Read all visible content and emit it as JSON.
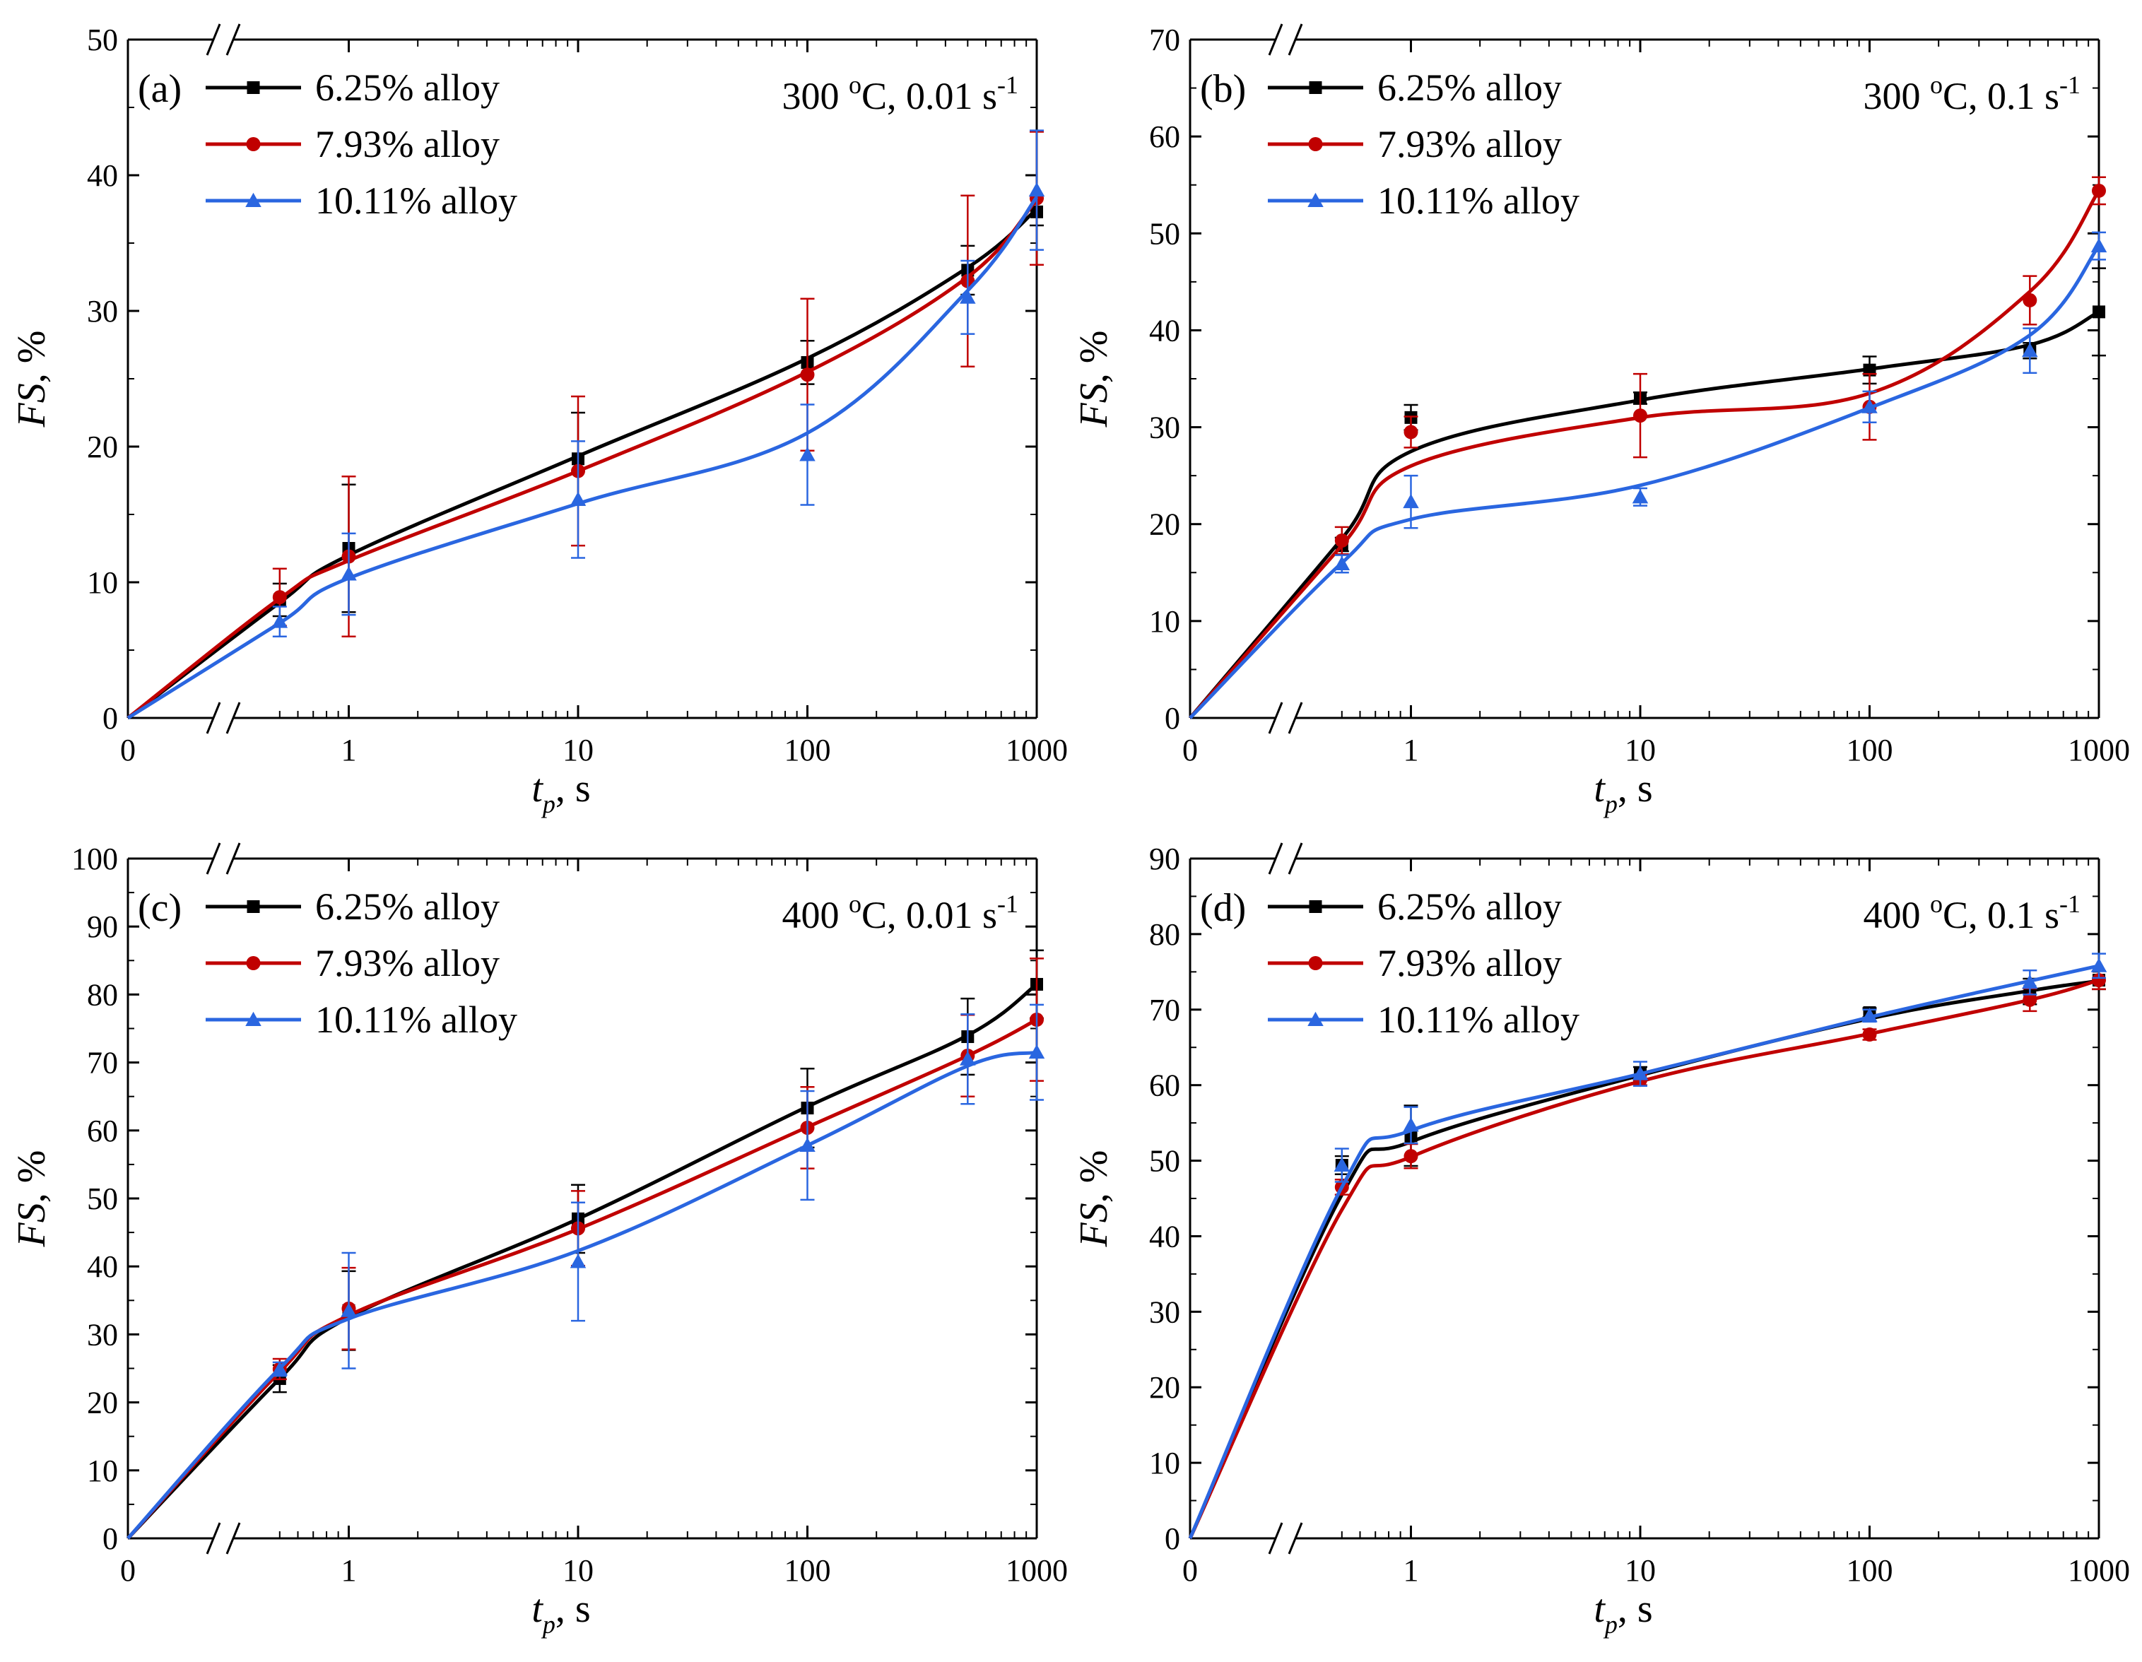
{
  "legend": {
    "s625": "6.25% alloy",
    "s793": "7.93% alloy",
    "s1011": "10.11% alloy"
  },
  "series_colors": {
    "s625": "#000000",
    "s793": "#c00000",
    "s1011": "#2a66e0"
  },
  "series_markers": {
    "s625": "square",
    "s793": "circle",
    "s1011": "triangle"
  },
  "chart_data": [
    {
      "type": "line",
      "panel": "(a)",
      "condition": "300 °C, 0.01 s-1",
      "condition_parts": {
        "pre": "300 ",
        "deg": "o",
        "mid": "C, 0.01 s",
        "exp": "-1"
      },
      "xlabel": "tp, s",
      "ylabel": "FS, %",
      "x_scale": "log with axis break between 0 and 0.5",
      "x_ticks": [
        "0",
        "1",
        "10",
        "100",
        "1000"
      ],
      "y_ticks": [
        "0",
        "10",
        "20",
        "30",
        "40",
        "50"
      ],
      "ylim": [
        0,
        50
      ],
      "x": [
        0.5,
        1,
        10,
        100,
        500,
        1000
      ],
      "series": [
        {
          "name": "6.25% alloy",
          "key": "s625",
          "values": [
            8.7,
            12.5,
            19.1,
            26.2,
            33.0,
            37.3
          ],
          "errors": [
            1.2,
            4.7,
            3.4,
            1.6,
            1.8,
            1.0
          ],
          "curve": [
            [
              0,
              0
            ],
            [
              0.5,
              8.5
            ],
            [
              1,
              12.0
            ],
            [
              10,
              19.3
            ],
            [
              100,
              26.5
            ],
            [
              500,
              33.2
            ],
            [
              1000,
              37.5
            ]
          ]
        },
        {
          "name": "7.93% alloy",
          "key": "s793",
          "values": [
            8.9,
            11.9,
            18.2,
            25.3,
            32.2,
            38.3
          ],
          "errors": [
            2.1,
            5.9,
            5.5,
            5.6,
            6.3,
            4.9
          ],
          "curve": [
            [
              0,
              0
            ],
            [
              0.5,
              8.8
            ],
            [
              1,
              11.6
            ],
            [
              10,
              18.2
            ],
            [
              100,
              25.5
            ],
            [
              500,
              32.5
            ],
            [
              1000,
              38.2
            ]
          ]
        },
        {
          "name": "10.11% alloy",
          "key": "s1011",
          "values": [
            7.1,
            10.6,
            16.1,
            19.4,
            31.0,
            38.9
          ],
          "errors": [
            1.1,
            3.0,
            4.3,
            3.7,
            2.7,
            4.4
          ],
          "curve": [
            [
              0,
              0
            ],
            [
              0.5,
              7.0
            ],
            [
              1,
              10.3
            ],
            [
              10,
              15.8
            ],
            [
              100,
              21.0
            ],
            [
              500,
              31.5
            ],
            [
              1000,
              38.4
            ]
          ]
        }
      ]
    },
    {
      "type": "line",
      "panel": "(b)",
      "condition": "300 °C, 0.1 s-1",
      "condition_parts": {
        "pre": "300 ",
        "deg": "o",
        "mid": "C, 0.1 s",
        "exp": "-1"
      },
      "xlabel": "tp, s",
      "ylabel": "FS, %",
      "x_scale": "log with axis break between 0 and 0.5",
      "x_ticks": [
        "0",
        "1",
        "10",
        "100",
        "1000"
      ],
      "y_ticks": [
        "0",
        "10",
        "20",
        "30",
        "40",
        "50",
        "60",
        "70"
      ],
      "ylim": [
        0,
        70
      ],
      "x": [
        0.5,
        1,
        10,
        100,
        500,
        1000
      ],
      "series": [
        {
          "name": "6.25% alloy",
          "key": "s625",
          "values": [
            17.9,
            31.0,
            33.0,
            35.9,
            37.9,
            41.9
          ],
          "errors": [
            0.7,
            1.3,
            0.6,
            1.4,
            0.8,
            4.5
          ],
          "curve": [
            [
              0,
              0
            ],
            [
              0.5,
              18.5
            ],
            [
              1,
              27.5
            ],
            [
              10,
              32.8
            ],
            [
              100,
              36.0
            ],
            [
              500,
              38.5
            ],
            [
              1000,
              41.9
            ]
          ]
        },
        {
          "name": "7.93% alloy",
          "key": "s793",
          "values": [
            18.3,
            29.5,
            31.2,
            32.1,
            43.1,
            54.4
          ],
          "errors": [
            1.4,
            1.6,
            4.3,
            3.4,
            2.5,
            1.4
          ],
          "curve": [
            [
              0,
              0
            ],
            [
              0.5,
              17.8
            ],
            [
              1,
              26.0
            ],
            [
              10,
              31.0
            ],
            [
              100,
              33.5
            ],
            [
              500,
              44.0
            ],
            [
              1000,
              54.4
            ]
          ]
        },
        {
          "name": "10.11% alloy",
          "key": "s1011",
          "values": [
            15.9,
            22.3,
            22.8,
            32.1,
            37.9,
            48.7
          ],
          "errors": [
            0.9,
            2.7,
            0.9,
            1.6,
            2.3,
            1.4
          ],
          "curve": [
            [
              0,
              0
            ],
            [
              0.5,
              16.0
            ],
            [
              1,
              20.5
            ],
            [
              10,
              24.0
            ],
            [
              100,
              32.0
            ],
            [
              500,
              39.5
            ],
            [
              1000,
              48.7
            ]
          ]
        }
      ]
    },
    {
      "type": "line",
      "panel": "(c)",
      "condition": "400 °C, 0.01 s-1",
      "condition_parts": {
        "pre": "400 ",
        "deg": "o",
        "mid": "C, 0.01 s",
        "exp": "-1"
      },
      "xlabel": "tp, s",
      "ylabel": "FS, %",
      "x_scale": "log with axis break between 0 and 0.5",
      "x_ticks": [
        "0",
        "1",
        "10",
        "100",
        "1000"
      ],
      "y_ticks": [
        "0",
        "10",
        "20",
        "30",
        "40",
        "50",
        "60",
        "70",
        "80",
        "90",
        "100"
      ],
      "ylim": [
        0,
        100
      ],
      "x": [
        0.5,
        1,
        10,
        100,
        500,
        1000
      ],
      "series": [
        {
          "name": "6.25% alloy",
          "key": "s625",
          "values": [
            23.5,
            33.5,
            47.0,
            63.3,
            73.8,
            81.5
          ],
          "errors": [
            2.0,
            5.8,
            5.0,
            5.8,
            5.6,
            5.0
          ],
          "curve": [
            [
              0,
              0
            ],
            [
              0.5,
              23.5
            ],
            [
              1,
              32.5
            ],
            [
              10,
              47.0
            ],
            [
              100,
              63.5
            ],
            [
              500,
              74.0
            ],
            [
              1000,
              81.5
            ]
          ]
        },
        {
          "name": "7.93% alloy",
          "key": "s793",
          "values": [
            24.9,
            33.8,
            45.6,
            60.4,
            71.0,
            76.3
          ],
          "errors": [
            1.5,
            6.0,
            5.5,
            6.0,
            6.0,
            9.0
          ],
          "curve": [
            [
              0,
              0
            ],
            [
              0.5,
              24.5
            ],
            [
              1,
              32.8
            ],
            [
              10,
              45.5
            ],
            [
              100,
              60.5
            ],
            [
              500,
              71.0
            ],
            [
              1000,
              76.3
            ]
          ]
        },
        {
          "name": "10.11% alloy",
          "key": "s1011",
          "values": [
            24.9,
            33.5,
            40.7,
            57.8,
            70.5,
            71.5
          ],
          "errors": [
            1.0,
            8.5,
            8.7,
            8.0,
            6.6,
            7.0
          ],
          "curve": [
            [
              0,
              0
            ],
            [
              0.5,
              25.0
            ],
            [
              1,
              32.3
            ],
            [
              10,
              42.3
            ],
            [
              100,
              57.8
            ],
            [
              500,
              69.5
            ],
            [
              1000,
              71.5
            ]
          ]
        }
      ]
    },
    {
      "type": "line",
      "panel": "(d)",
      "condition": "400 °C, 0.1 s-1",
      "condition_parts": {
        "pre": "400 ",
        "deg": "o",
        "mid": "C, 0.1 s",
        "exp": "-1"
      },
      "xlabel": "tp, s",
      "ylabel": "FS, %",
      "x_scale": "log with axis break between 0 and 0.5",
      "x_ticks": [
        "0",
        "1",
        "10",
        "100",
        "1000"
      ],
      "y_ticks": [
        "0",
        "10",
        "20",
        "30",
        "40",
        "50",
        "60",
        "70",
        "80",
        "90"
      ],
      "ylim": [
        0,
        90
      ],
      "x": [
        0.5,
        1,
        10,
        100,
        500,
        1000
      ],
      "series": [
        {
          "name": "6.25% alloy",
          "key": "s625",
          "values": [
            49.4,
            53.3,
            61.5,
            69.6,
            72.4,
            73.9
          ],
          "errors": [
            1.2,
            4.0,
            0.9,
            0.6,
            1.7,
            1.2
          ],
          "curve": [
            [
              0,
              0
            ],
            [
              0.5,
              45.5
            ],
            [
              1,
              52.5
            ],
            [
              10,
              61.3
            ],
            [
              100,
              68.8
            ],
            [
              500,
              72.5
            ],
            [
              1000,
              73.8
            ]
          ]
        },
        {
          "name": "7.93% alloy",
          "key": "s793",
          "values": [
            46.5,
            50.6,
            60.7,
            66.7,
            71.3,
            73.9
          ],
          "errors": [
            1.0,
            1.6,
            0.7,
            0.7,
            1.5,
            1.2
          ],
          "curve": [
            [
              0,
              0
            ],
            [
              0.5,
              43.5
            ],
            [
              1,
              50.5
            ],
            [
              10,
              60.5
            ],
            [
              100,
              66.8
            ],
            [
              500,
              71.3
            ],
            [
              1000,
              73.9
            ]
          ]
        },
        {
          "name": "10.11% alloy",
          "key": "s1011",
          "values": [
            49.4,
            54.7,
            61.5,
            69.2,
            73.6,
            75.8
          ],
          "errors": [
            2.2,
            2.4,
            1.6,
            0.8,
            1.6,
            1.6
          ],
          "curve": [
            [
              0,
              0
            ],
            [
              0.5,
              46.5
            ],
            [
              1,
              54.0
            ],
            [
              10,
              61.5
            ],
            [
              100,
              69.0
            ],
            [
              500,
              73.8
            ],
            [
              1000,
              75.8
            ]
          ]
        }
      ]
    }
  ]
}
